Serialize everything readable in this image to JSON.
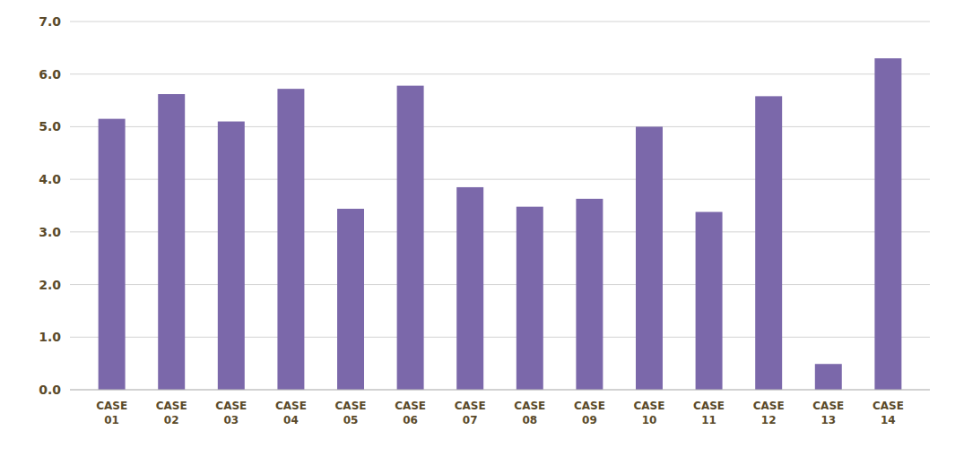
{
  "chart_data": {
    "type": "bar",
    "categories": [
      "CASE\n01",
      "CASE\n02",
      "CASE\n03",
      "CASE\n04",
      "CASE\n05",
      "CASE\n06",
      "CASE\n07",
      "CASE\n08",
      "CASE\n09",
      "CASE\n10",
      "CASE\n11",
      "CASE\n12",
      "CASE\n13",
      "CASE\n14"
    ],
    "values": [
      5.15,
      5.62,
      5.1,
      5.72,
      3.44,
      5.78,
      3.85,
      3.48,
      3.63,
      5.0,
      3.38,
      5.58,
      0.49,
      6.3
    ],
    "color": "#7B68AA",
    "ylim": [
      0,
      7.0
    ],
    "yticks": [
      {
        "value": 0.0,
        "label": "0.0"
      },
      {
        "value": 1.0,
        "label": "1.0"
      },
      {
        "value": 2.0,
        "label": "2.0"
      },
      {
        "value": 3.0,
        "label": "3.0"
      },
      {
        "value": 4.0,
        "label": "4.0"
      },
      {
        "value": 5.0,
        "label": "5.0"
      },
      {
        "value": 6.0,
        "label": "6.0"
      },
      {
        "value": 7.0,
        "label": "7.0"
      }
    ],
    "grid": true
  }
}
